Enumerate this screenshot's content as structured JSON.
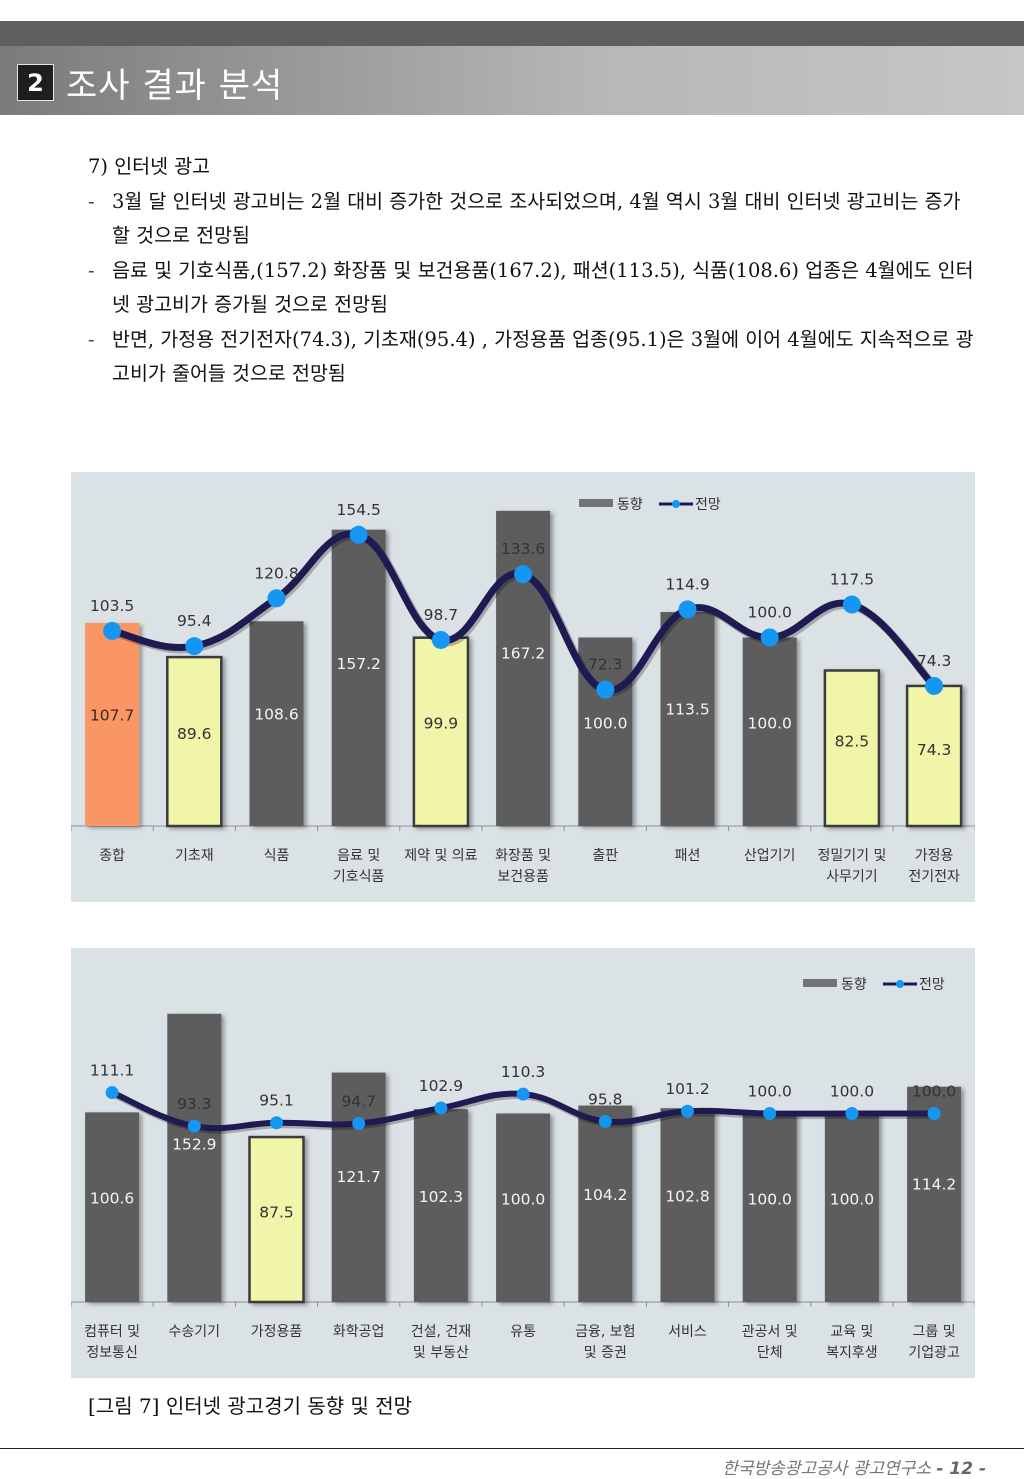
{
  "header": {
    "section_number": "2",
    "section_title": "조사 결과 분석"
  },
  "body": {
    "sub_heading": "7) 인터넷 광고",
    "bullets": [
      {
        "dash": "-",
        "text": "3월 달 인터넷 광고비는 2월 대비 증가한 것으로 조사되었으며, 4월 역시 3월 대비 인터넷 광고비는 증가할 것으로 전망됨"
      },
      {
        "dash": "-",
        "text": "음료 및 기호식품,(157.2) 화장품 및 보건용품(167.2), 패션(113.5), 식품(108.6) 업종은 4월에도 인터넷 광고비가 증가될 것으로 전망됨"
      },
      {
        "dash": "-",
        "text": "반면, 가정용 전기전자(74.3), 기초재(95.4) , 가정용품 업종(95.1)은  3월에 이어 4월에도 지속적으로 광고비가 줄어들 것으로 전망됨"
      }
    ]
  },
  "chart_data": [
    {
      "type": "bar",
      "title": "",
      "xlabel": "",
      "ylabel": "",
      "ylim": [
        0,
        175
      ],
      "grid": false,
      "legend": {
        "position": "top-right",
        "entries": [
          "동향",
          "전망"
        ]
      },
      "categories": [
        "종합",
        "기초재",
        "식품",
        "음료 및\n기호식품",
        "제약 및 의료",
        "화장품 및\n보건용품",
        "출판",
        "패션",
        "산업기기",
        "정밀기기 및\n사무기기",
        "가정용\n전기전자"
      ],
      "series": [
        {
          "name": "동향",
          "kind": "bar",
          "values": [
            107.7,
            89.6,
            108.6,
            157.2,
            99.9,
            167.2,
            100.0,
            113.5,
            100.0,
            82.5,
            74.3
          ],
          "labels": [
            "107.7",
            "89.6",
            "108.6",
            "157.2",
            "99.9",
            "167.2",
            "100.0",
            "113.5",
            "100.0",
            "82.5",
            "74.3"
          ],
          "highlight": [
            "total",
            "low",
            "normal",
            "normal",
            "low",
            "normal",
            "normal",
            "normal",
            "normal",
            "low",
            "low"
          ]
        },
        {
          "name": "전망",
          "kind": "line",
          "values": [
            103.5,
            95.4,
            120.8,
            154.5,
            98.7,
            133.6,
            72.3,
            114.9,
            100.0,
            117.5,
            74.3
          ],
          "labels": [
            "103.5",
            "95.4",
            "120.8",
            "154.5",
            "98.7",
            "133.6",
            "72.3",
            "114.9",
            "100.0",
            "117.5",
            "74.3"
          ]
        }
      ],
      "colors": {
        "bar": "#5d5d5d",
        "bar_total": "#fa9664",
        "bar_low": "#f0f5aa",
        "line": "#1e1a52",
        "marker": "#1596f3",
        "panel": "#dbe2e6"
      }
    },
    {
      "type": "bar",
      "title": "",
      "xlabel": "",
      "ylabel": "",
      "ylim": [
        0,
        175
      ],
      "grid": false,
      "legend": {
        "position": "top-right",
        "entries": [
          "동향",
          "전망"
        ]
      },
      "categories": [
        "컴퓨터 및\n정보통신",
        "수송기기",
        "가정용품",
        "화학공업",
        "건설, 건재\n및 부동산",
        "유통",
        "금융, 보험\n및 증권",
        "서비스",
        "관공서 및\n단체",
        "교육 및\n복지후생",
        "그룹 및\n기업광고"
      ],
      "series": [
        {
          "name": "동향",
          "kind": "bar",
          "values": [
            100.6,
            152.9,
            87.5,
            121.7,
            102.3,
            100.0,
            104.2,
            102.8,
            100.0,
            100.0,
            114.2
          ],
          "labels": [
            "100.6",
            "152.9",
            "87.5",
            "121.7",
            "102.3",
            "100.0",
            "104.2",
            "102.8",
            "100.0",
            "100.0",
            "114.2"
          ],
          "highlight": [
            "normal",
            "normal",
            "low",
            "normal",
            "normal",
            "normal",
            "normal",
            "normal",
            "normal",
            "normal",
            "normal"
          ]
        },
        {
          "name": "전망",
          "kind": "line",
          "values": [
            111.1,
            93.3,
            95.1,
            94.7,
            102.9,
            110.3,
            95.8,
            101.2,
            100.0,
            100.0,
            100.0
          ],
          "labels": [
            "111.1",
            "93.3",
            "95.1",
            "94.7",
            "102.9",
            "110.3",
            "95.8",
            "101.2",
            "100.0",
            "100.0",
            "100.0"
          ]
        }
      ],
      "colors": {
        "bar": "#5d5d5d",
        "bar_total": "#fa9664",
        "bar_low": "#f0f5aa",
        "line": "#1e1a52",
        "marker": "#1596f3",
        "panel": "#dbe2e6"
      }
    }
  ],
  "caption": "[그림 7] 인터넷 광고경기 동향 및 전망",
  "footer": {
    "organization": "한국방송광고공사 광고연구소",
    "page": "- 12 -"
  }
}
